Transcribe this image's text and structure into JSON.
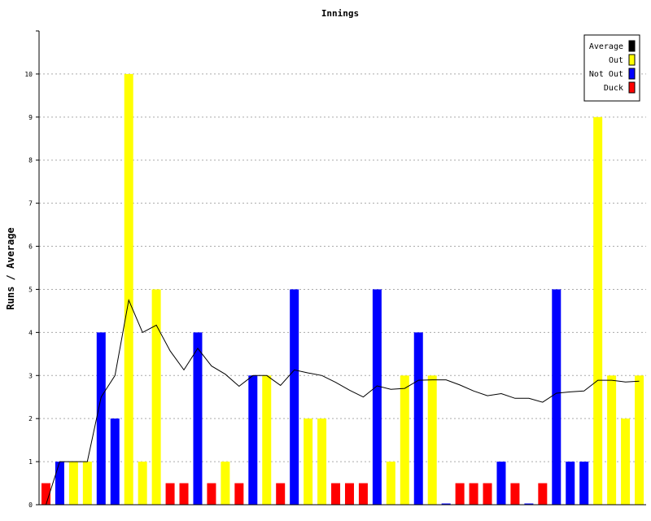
{
  "chart_data": {
    "type": "bar",
    "title": "Innings",
    "xlabel": "",
    "ylabel": "Runs / Average",
    "ylim": [
      0,
      11
    ],
    "y_ticks": [
      "0",
      "1",
      "2",
      "3",
      "4",
      "5",
      "6",
      "7",
      "8",
      "9",
      "10"
    ],
    "grid": true,
    "legend_position": "top-right",
    "legend": [
      {
        "label": "Average",
        "color": "#000000"
      },
      {
        "label": "Out",
        "color": "#ffff00"
      },
      {
        "label": "Not Out",
        "color": "#0000ff"
      },
      {
        "label": "Duck",
        "color": "#ff0000"
      }
    ],
    "colors": {
      "Out": "#ffff00",
      "Not Out": "#0000ff",
      "Duck": "#ff0000",
      "Average": "#000000"
    },
    "innings": [
      {
        "runs": 0,
        "kind": "Duck"
      },
      {
        "runs": 1,
        "kind": "Not Out"
      },
      {
        "runs": 1,
        "kind": "Out"
      },
      {
        "runs": 1,
        "kind": "Out"
      },
      {
        "runs": 4,
        "kind": "Not Out"
      },
      {
        "runs": 2,
        "kind": "Not Out"
      },
      {
        "runs": 10,
        "kind": "Out"
      },
      {
        "runs": 1,
        "kind": "Out"
      },
      {
        "runs": 5,
        "kind": "Out"
      },
      {
        "runs": 0,
        "kind": "Duck"
      },
      {
        "runs": 0,
        "kind": "Duck"
      },
      {
        "runs": 4,
        "kind": "Not Out"
      },
      {
        "runs": 0,
        "kind": "Duck"
      },
      {
        "runs": 1,
        "kind": "Out"
      },
      {
        "runs": 0,
        "kind": "Duck"
      },
      {
        "runs": 3,
        "kind": "Not Out"
      },
      {
        "runs": 3,
        "kind": "Out"
      },
      {
        "runs": 0,
        "kind": "Duck"
      },
      {
        "runs": 5,
        "kind": "Not Out"
      },
      {
        "runs": 2,
        "kind": "Out"
      },
      {
        "runs": 2,
        "kind": "Out"
      },
      {
        "runs": 0,
        "kind": "Duck"
      },
      {
        "runs": 0,
        "kind": "Duck"
      },
      {
        "runs": 0,
        "kind": "Duck"
      },
      {
        "runs": 5,
        "kind": "Not Out"
      },
      {
        "runs": 1,
        "kind": "Out"
      },
      {
        "runs": 3,
        "kind": "Out"
      },
      {
        "runs": 4,
        "kind": "Not Out"
      },
      {
        "runs": 3,
        "kind": "Out"
      },
      {
        "runs": 0,
        "kind": "Not Out"
      },
      {
        "runs": 0,
        "kind": "Duck"
      },
      {
        "runs": 0,
        "kind": "Duck"
      },
      {
        "runs": 0,
        "kind": "Duck"
      },
      {
        "runs": 1,
        "kind": "Not Out"
      },
      {
        "runs": 0,
        "kind": "Duck"
      },
      {
        "runs": 0,
        "kind": "Not Out"
      },
      {
        "runs": 0,
        "kind": "Duck"
      },
      {
        "runs": 5,
        "kind": "Not Out"
      },
      {
        "runs": 1,
        "kind": "Not Out"
      },
      {
        "runs": 1,
        "kind": "Not Out"
      },
      {
        "runs": 9,
        "kind": "Out"
      },
      {
        "runs": 3,
        "kind": "Out"
      },
      {
        "runs": 2,
        "kind": "Out"
      },
      {
        "runs": 3,
        "kind": "Out"
      }
    ],
    "average": [
      0,
      1,
      1,
      1,
      2.5,
      3,
      4.75,
      4,
      4.17,
      3.57,
      3.13,
      3.63,
      3.22,
      3.03,
      2.75,
      3,
      3,
      2.77,
      3.13,
      3.06,
      3,
      2.84,
      2.66,
      2.5,
      2.76,
      2.68,
      2.7,
      2.89,
      2.9,
      2.9,
      2.78,
      2.64,
      2.53,
      2.58,
      2.47,
      2.47,
      2.38,
      2.59,
      2.62,
      2.64,
      2.89,
      2.89,
      2.85,
      2.87
    ]
  }
}
